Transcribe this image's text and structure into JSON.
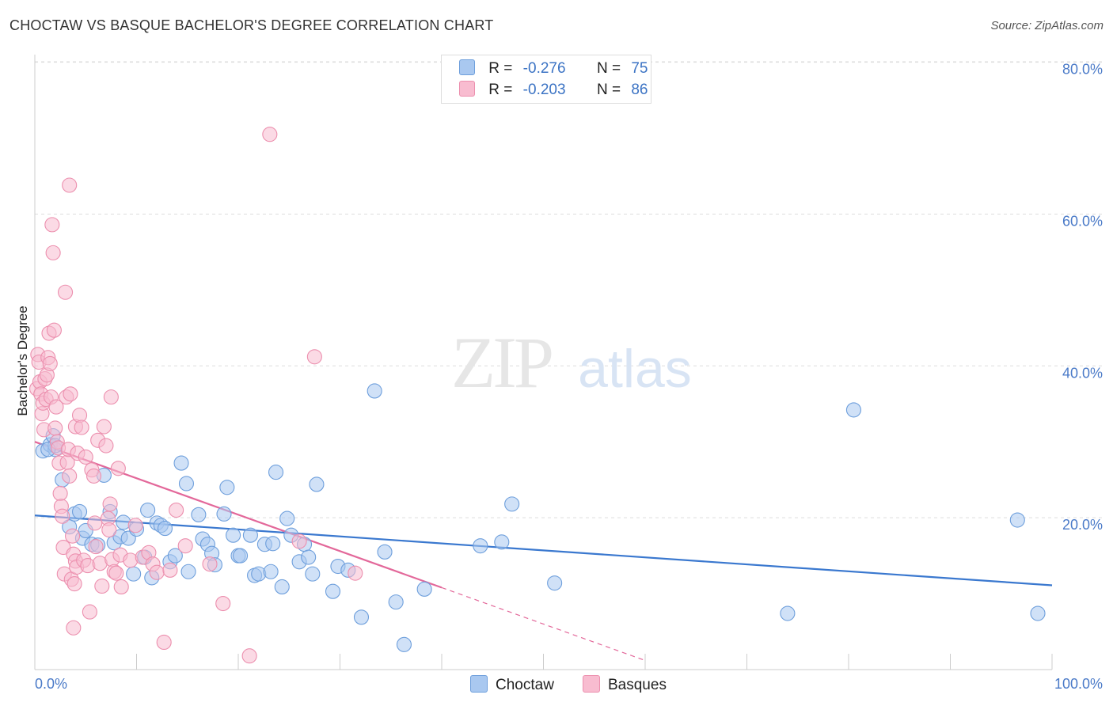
{
  "title": "CHOCTAW VS BASQUE BACHELOR'S DEGREE CORRELATION CHART",
  "source": "Source: ZipAtlas.com",
  "watermark": {
    "zip": "ZIP",
    "atlas": "atlas"
  },
  "legend": {
    "choctaw": {
      "r_label": "R =",
      "r_value": "-0.276",
      "n_label": "N =",
      "n_value": "75"
    },
    "basques": {
      "r_label": "R =",
      "r_value": "-0.203",
      "n_label": "N =",
      "n_value": "86"
    }
  },
  "bottom_legend": {
    "choctaw": "Choctaw",
    "basques": "Basques"
  },
  "colors": {
    "choctaw_fill": "#a9c8f0",
    "choctaw_stroke": "#6e9fdc",
    "choctaw_line": "#3a78cf",
    "basques_fill": "#f8bcd0",
    "basques_stroke": "#ec8fae",
    "basques_line": "#e3689a",
    "tick_text": "#4a7ac8",
    "grid": "#dddddd"
  },
  "chart_data": {
    "type": "scatter",
    "xlabel": "",
    "ylabel": "Bachelor's Degree",
    "xlim": [
      0,
      100
    ],
    "ylim": [
      0,
      81
    ],
    "x_tick_labels": [
      "0.0%",
      "100.0%"
    ],
    "y_ticks": [
      20,
      40,
      60,
      80
    ],
    "y_tick_labels": [
      "20.0%",
      "40.0%",
      "60.0%",
      "80.0%"
    ],
    "grid": "horizontal dashed",
    "series": [
      {
        "name": "Choctaw",
        "trend": {
          "x": [
            0,
            100
          ],
          "y": [
            20.3,
            11.1
          ]
        },
        "points": [
          [
            0.8,
            28.8
          ],
          [
            1.5,
            29.6
          ],
          [
            1.8,
            30.8
          ],
          [
            2.0,
            29.0
          ],
          [
            2.7,
            25.0
          ],
          [
            3.4,
            18.8
          ],
          [
            3.9,
            20.5
          ],
          [
            4.4,
            20.8
          ],
          [
            4.7,
            17.3
          ],
          [
            5.0,
            18.3
          ],
          [
            5.6,
            16.5
          ],
          [
            6.2,
            16.4
          ],
          [
            6.8,
            25.6
          ],
          [
            7.4,
            20.8
          ],
          [
            7.8,
            16.7
          ],
          [
            8.4,
            17.5
          ],
          [
            8.7,
            19.4
          ],
          [
            9.2,
            17.3
          ],
          [
            9.7,
            12.6
          ],
          [
            10.0,
            18.5
          ],
          [
            10.8,
            14.8
          ],
          [
            11.1,
            21.0
          ],
          [
            11.5,
            12.1
          ],
          [
            12.0,
            19.3
          ],
          [
            12.4,
            19.0
          ],
          [
            12.8,
            18.6
          ],
          [
            13.3,
            14.2
          ],
          [
            13.8,
            15.0
          ],
          [
            14.4,
            27.2
          ],
          [
            14.9,
            24.5
          ],
          [
            15.1,
            12.9
          ],
          [
            16.1,
            20.4
          ],
          [
            16.5,
            17.2
          ],
          [
            17.0,
            16.5
          ],
          [
            17.4,
            15.3
          ],
          [
            17.7,
            13.8
          ],
          [
            18.6,
            20.5
          ],
          [
            18.9,
            24.0
          ],
          [
            19.5,
            17.7
          ],
          [
            20.0,
            15.0
          ],
          [
            20.2,
            15.0
          ],
          [
            21.2,
            17.7
          ],
          [
            21.6,
            12.4
          ],
          [
            22.0,
            12.6
          ],
          [
            22.6,
            16.5
          ],
          [
            23.2,
            12.9
          ],
          [
            23.4,
            16.6
          ],
          [
            23.7,
            26.0
          ],
          [
            24.3,
            10.9
          ],
          [
            24.8,
            19.9
          ],
          [
            25.2,
            17.7
          ],
          [
            26.0,
            14.2
          ],
          [
            26.5,
            16.5
          ],
          [
            26.9,
            14.8
          ],
          [
            27.3,
            12.6
          ],
          [
            27.7,
            24.4
          ],
          [
            29.3,
            10.3
          ],
          [
            29.8,
            13.6
          ],
          [
            30.8,
            13.1
          ],
          [
            32.1,
            6.9
          ],
          [
            33.4,
            36.7
          ],
          [
            34.4,
            15.5
          ],
          [
            35.5,
            8.9
          ],
          [
            36.3,
            3.3
          ],
          [
            38.3,
            10.6
          ],
          [
            43.8,
            16.3
          ],
          [
            45.9,
            16.8
          ],
          [
            46.9,
            21.8
          ],
          [
            51.1,
            11.4
          ],
          [
            74.0,
            7.4
          ],
          [
            80.5,
            34.2
          ],
          [
            96.6,
            19.7
          ],
          [
            98.6,
            7.4
          ],
          [
            2.0,
            29.5
          ],
          [
            1.3,
            29.0
          ]
        ]
      },
      {
        "name": "Basques",
        "trend": {
          "x": [
            0,
            40
          ],
          "y": [
            30.0,
            10.8
          ]
        },
        "trend_extension": {
          "x": [
            40,
            60
          ],
          "y": [
            10.8,
            1.2
          ]
        },
        "points": [
          [
            0.2,
            37.0
          ],
          [
            0.3,
            41.5
          ],
          [
            0.4,
            40.5
          ],
          [
            0.5,
            37.9
          ],
          [
            0.6,
            36.3
          ],
          [
            0.7,
            33.7
          ],
          [
            0.8,
            35.1
          ],
          [
            0.9,
            31.6
          ],
          [
            1.0,
            38.3
          ],
          [
            1.1,
            35.6
          ],
          [
            1.2,
            38.8
          ],
          [
            1.3,
            41.1
          ],
          [
            1.4,
            44.3
          ],
          [
            1.5,
            40.3
          ],
          [
            1.6,
            35.9
          ],
          [
            1.7,
            58.6
          ],
          [
            1.8,
            54.9
          ],
          [
            1.9,
            44.7
          ],
          [
            2.0,
            31.8
          ],
          [
            2.1,
            34.6
          ],
          [
            2.2,
            30.0
          ],
          [
            2.3,
            29.2
          ],
          [
            2.4,
            27.2
          ],
          [
            2.5,
            23.2
          ],
          [
            2.6,
            21.5
          ],
          [
            2.7,
            20.2
          ],
          [
            2.8,
            16.1
          ],
          [
            2.9,
            12.6
          ],
          [
            3.0,
            49.7
          ],
          [
            3.1,
            35.9
          ],
          [
            3.2,
            27.3
          ],
          [
            3.3,
            29.0
          ],
          [
            3.4,
            25.5
          ],
          [
            3.5,
            36.3
          ],
          [
            3.6,
            11.9
          ],
          [
            3.7,
            17.6
          ],
          [
            3.8,
            15.2
          ],
          [
            3.9,
            11.3
          ],
          [
            4.0,
            14.3
          ],
          [
            4.1,
            13.5
          ],
          [
            3.4,
            63.8
          ],
          [
            3.8,
            5.5
          ],
          [
            4.0,
            32.0
          ],
          [
            4.2,
            28.5
          ],
          [
            4.4,
            33.5
          ],
          [
            4.6,
            31.9
          ],
          [
            4.8,
            14.4
          ],
          [
            5.0,
            28.0
          ],
          [
            5.2,
            13.7
          ],
          [
            5.4,
            7.6
          ],
          [
            5.6,
            26.3
          ],
          [
            5.8,
            25.5
          ],
          [
            5.9,
            19.3
          ],
          [
            6.0,
            16.2
          ],
          [
            6.2,
            30.2
          ],
          [
            6.4,
            14.0
          ],
          [
            6.6,
            11.0
          ],
          [
            6.8,
            32.0
          ],
          [
            7.0,
            29.5
          ],
          [
            7.2,
            19.9
          ],
          [
            7.3,
            18.4
          ],
          [
            7.4,
            21.8
          ],
          [
            7.5,
            35.9
          ],
          [
            7.6,
            14.5
          ],
          [
            7.8,
            12.9
          ],
          [
            8.0,
            12.7
          ],
          [
            8.2,
            26.5
          ],
          [
            8.4,
            15.1
          ],
          [
            8.5,
            10.9
          ],
          [
            9.4,
            14.4
          ],
          [
            9.9,
            19.0
          ],
          [
            10.6,
            14.8
          ],
          [
            11.2,
            15.4
          ],
          [
            11.6,
            13.9
          ],
          [
            12.0,
            12.8
          ],
          [
            12.7,
            3.6
          ],
          [
            13.3,
            13.1
          ],
          [
            13.9,
            21.0
          ],
          [
            14.8,
            16.3
          ],
          [
            17.2,
            13.9
          ],
          [
            18.5,
            8.7
          ],
          [
            21.1,
            1.8
          ],
          [
            23.1,
            70.5
          ],
          [
            26.0,
            16.9
          ],
          [
            27.5,
            41.2
          ],
          [
            31.5,
            12.7
          ]
        ]
      }
    ]
  }
}
